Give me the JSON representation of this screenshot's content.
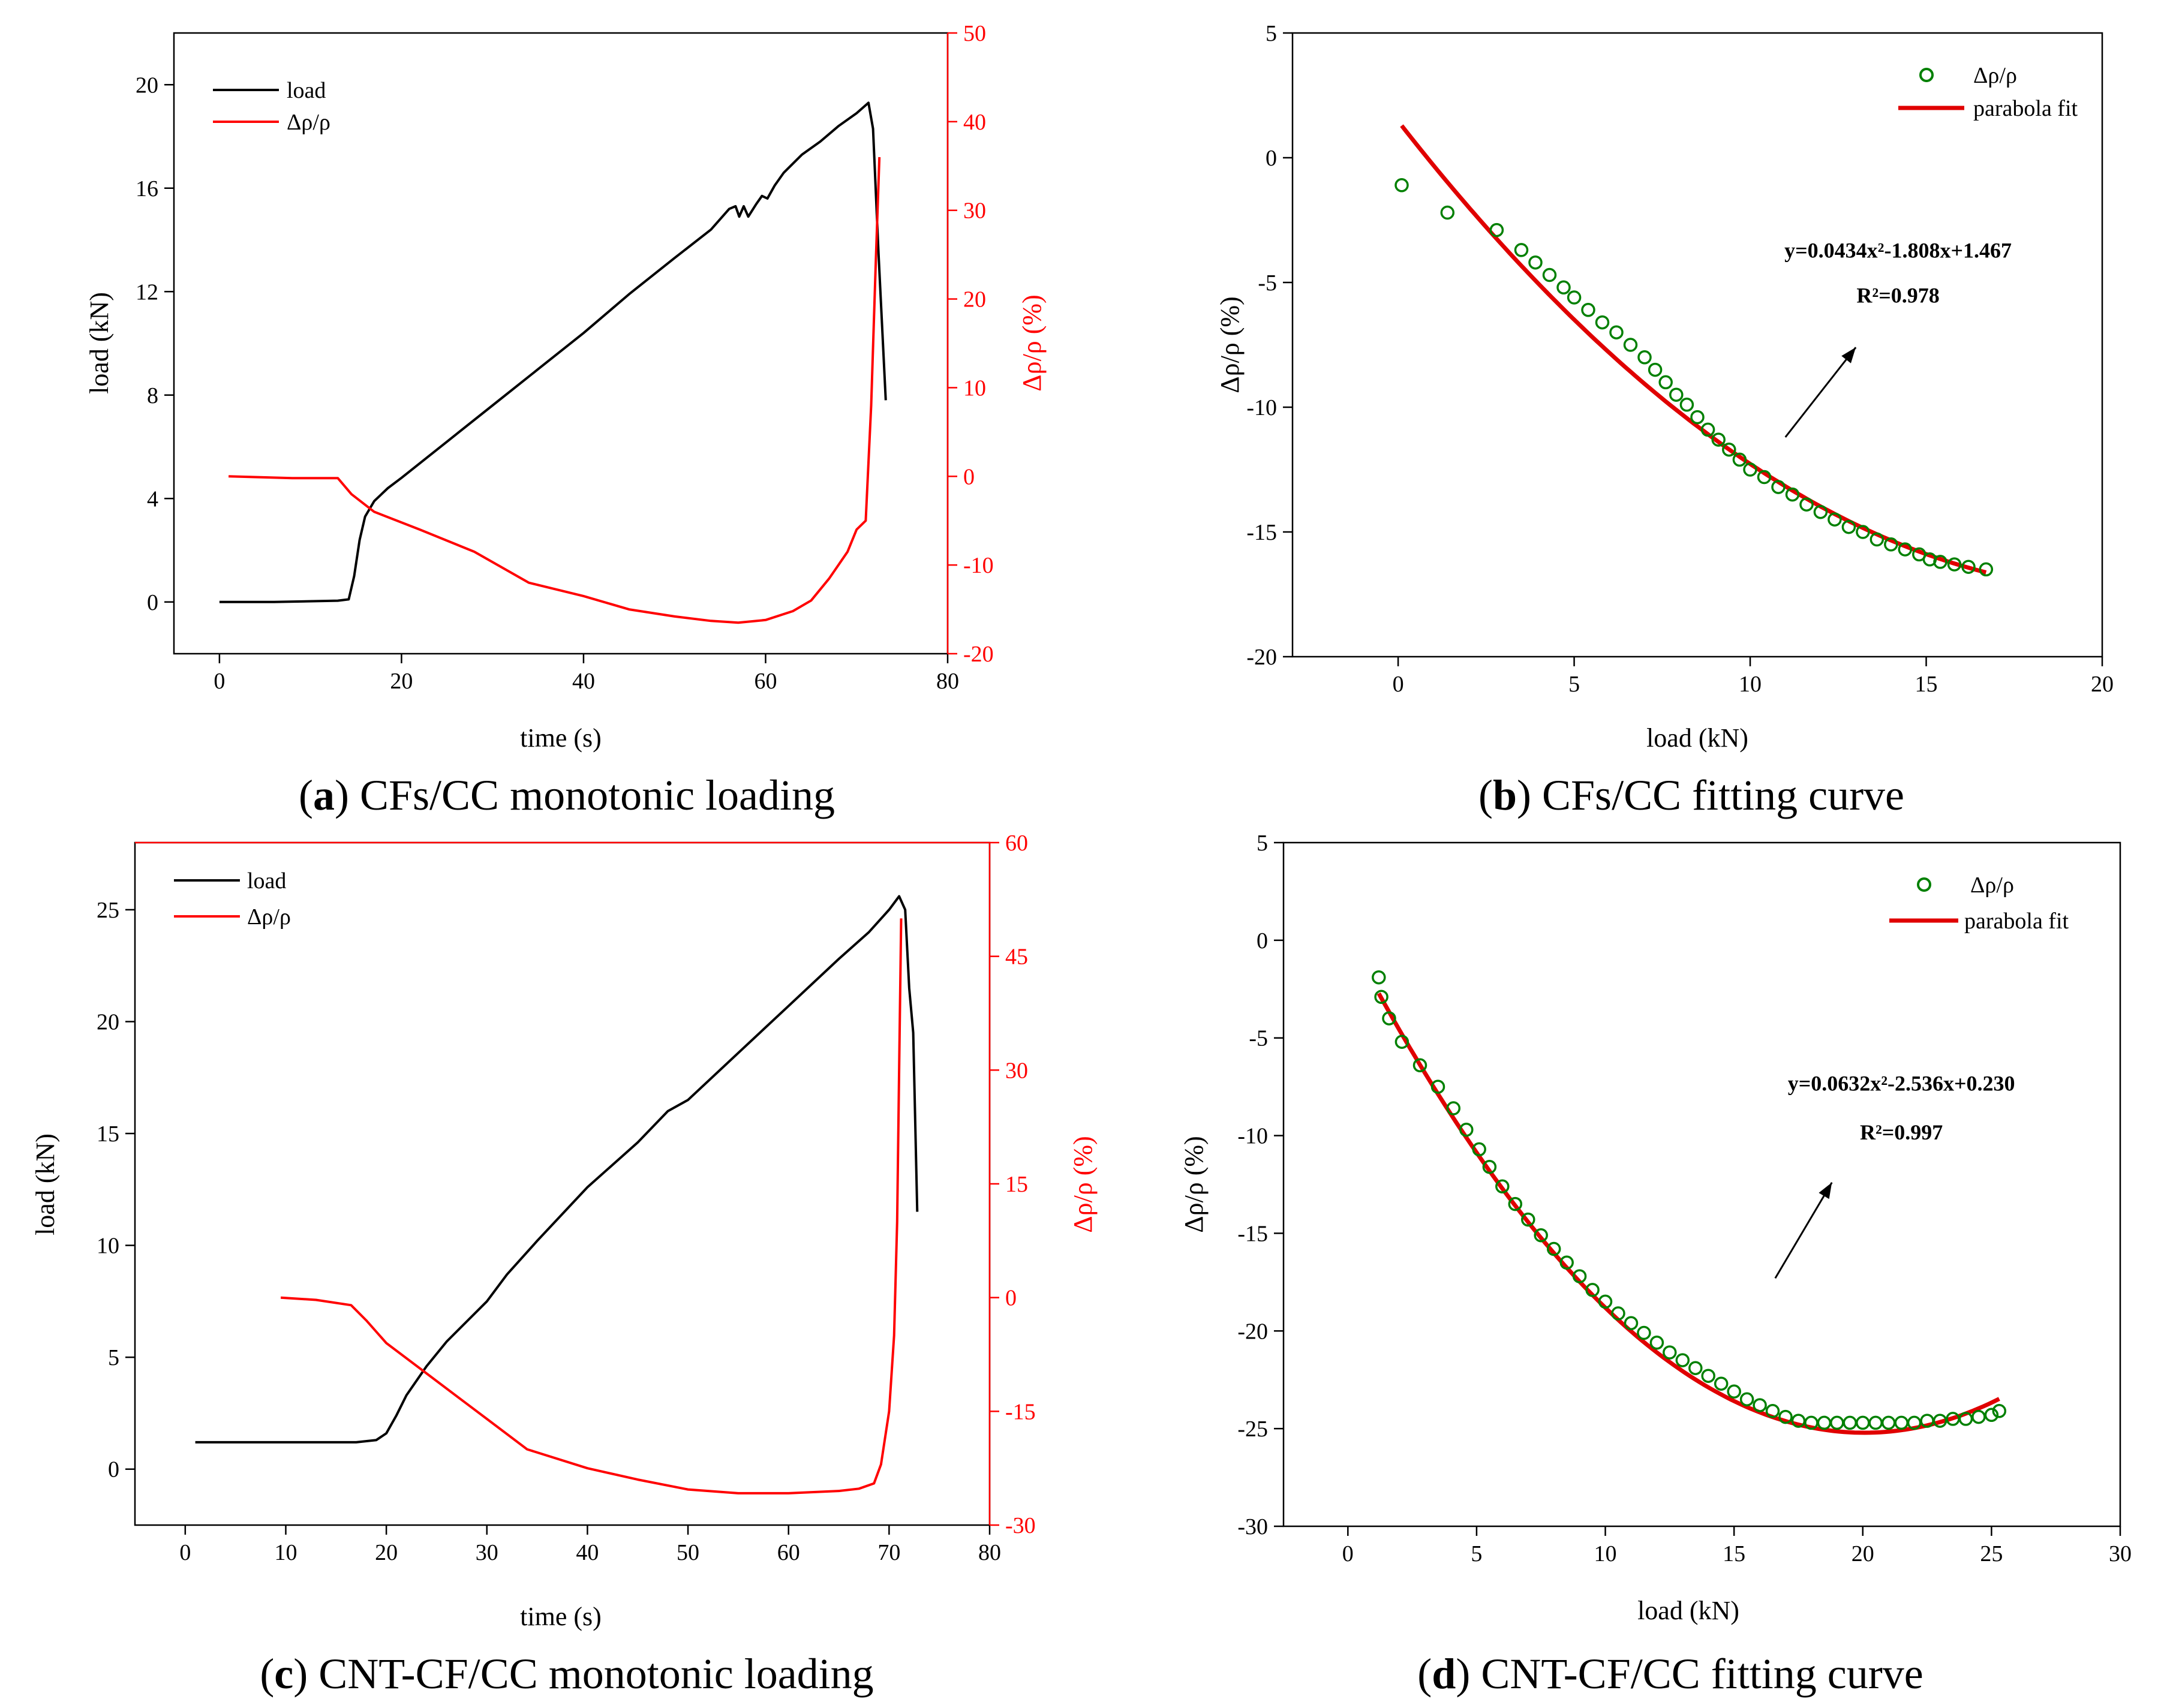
{
  "chart_data": [
    {
      "id": "a",
      "type": "line",
      "caption": {
        "letter": "a",
        "text": "CFs/CC monotonic loading"
      },
      "xlabel": "time (s)",
      "ylabel": "load (kN)",
      "y2label": "Δρ/ρ (%)",
      "xlim": [
        -5,
        80
      ],
      "ylim": [
        -2,
        22
      ],
      "y2lim": [
        -20,
        50
      ],
      "xticks": [
        "0",
        "20",
        "40",
        "60",
        "80"
      ],
      "yticks": [
        "0",
        "4",
        "8",
        "12",
        "16",
        "20"
      ],
      "y2ticks": [
        "-20",
        "-10",
        "0",
        "10",
        "20",
        "30",
        "40",
        "50"
      ],
      "legend": [
        {
          "label": "load",
          "color": "#000000"
        },
        {
          "label": "Δρ/ρ",
          "color": "#ff0000"
        }
      ],
      "series": [
        {
          "name": "load",
          "axis": "left",
          "color": "#000000",
          "points": [
            [
              0,
              0
            ],
            [
              6,
              0
            ],
            [
              13,
              0.05
            ],
            [
              14.2,
              0.1
            ],
            [
              14.8,
              1.0
            ],
            [
              15.4,
              2.4
            ],
            [
              16,
              3.3
            ],
            [
              17,
              3.9
            ],
            [
              18.5,
              4.4
            ],
            [
              20,
              4.8
            ],
            [
              25,
              6.2
            ],
            [
              30,
              7.6
            ],
            [
              35,
              9.0
            ],
            [
              40,
              10.4
            ],
            [
              45,
              11.9
            ],
            [
              50,
              13.3
            ],
            [
              54,
              14.4
            ],
            [
              56,
              15.2
            ],
            [
              56.7,
              15.3
            ],
            [
              57.1,
              14.9
            ],
            [
              57.6,
              15.3
            ],
            [
              58.1,
              14.9
            ],
            [
              59,
              15.4
            ],
            [
              59.6,
              15.7
            ],
            [
              60.2,
              15.6
            ],
            [
              61,
              16.1
            ],
            [
              62,
              16.6
            ],
            [
              64,
              17.3
            ],
            [
              66,
              17.8
            ],
            [
              68,
              18.4
            ],
            [
              70,
              18.9
            ],
            [
              71.3,
              19.3
            ],
            [
              71.8,
              18.3
            ],
            [
              72.4,
              13.5
            ],
            [
              73.2,
              7.8
            ]
          ]
        },
        {
          "name": "Δρ/ρ",
          "axis": "right",
          "color": "#ff0000",
          "points": [
            [
              1,
              0
            ],
            [
              8,
              -0.2
            ],
            [
              13,
              -0.2
            ],
            [
              14.5,
              -2
            ],
            [
              17,
              -4
            ],
            [
              22,
              -6
            ],
            [
              28,
              -8.5
            ],
            [
              34,
              -12
            ],
            [
              40,
              -13.5
            ],
            [
              45,
              -15
            ],
            [
              50,
              -15.8
            ],
            [
              54,
              -16.3
            ],
            [
              57,
              -16.5
            ],
            [
              60,
              -16.2
            ],
            [
              63,
              -15.2
            ],
            [
              65,
              -14
            ],
            [
              67,
              -11.5
            ],
            [
              69,
              -8.5
            ],
            [
              70,
              -6
            ],
            [
              71,
              -5
            ],
            [
              71.6,
              8
            ],
            [
              72.1,
              24
            ],
            [
              72.5,
              36
            ]
          ]
        }
      ]
    },
    {
      "id": "b",
      "type": "scatter",
      "caption": {
        "letter": "b",
        "text": "CFs/CC fitting curve"
      },
      "xlabel": "load (kN)",
      "ylabel": "Δρ/ρ (%)",
      "xlim": [
        -3,
        20
      ],
      "ylim": [
        -20,
        5
      ],
      "xticks": [
        "0",
        "5",
        "10",
        "15",
        "20"
      ],
      "yticks": [
        "-20",
        "-15",
        "-10",
        "-5",
        "0",
        "5"
      ],
      "legend": [
        {
          "label": "Δρ/ρ",
          "marker": "circle",
          "color": "#008000"
        },
        {
          "label": "parabola fit",
          "marker": "line",
          "color": "#e00000"
        }
      ],
      "equation": "y=0.0434x²-1.808x+1.467",
      "r2": "R²=0.978",
      "fit": {
        "a": 0.0434,
        "b": -1.808,
        "c": 1.467,
        "x_range": [
          0.1,
          16.7
        ],
        "color": "#e00000"
      },
      "arrow": {
        "from": [
          11,
          -11.2
        ],
        "to": [
          13,
          -7.6
        ]
      },
      "equation_anchor": [
        14.2,
        -4
      ],
      "r2_anchor": [
        14.2,
        -5.8
      ],
      "points": [
        [
          0.1,
          -1.1
        ],
        [
          1.4,
          -2.2
        ],
        [
          2.8,
          -2.9
        ],
        [
          3.5,
          -3.7
        ],
        [
          3.9,
          -4.2
        ],
        [
          4.3,
          -4.7
        ],
        [
          4.7,
          -5.2
        ],
        [
          5.0,
          -5.6
        ],
        [
          5.4,
          -6.1
        ],
        [
          5.8,
          -6.6
        ],
        [
          6.2,
          -7.0
        ],
        [
          6.6,
          -7.5
        ],
        [
          7.0,
          -8.0
        ],
        [
          7.3,
          -8.5
        ],
        [
          7.6,
          -9.0
        ],
        [
          7.9,
          -9.5
        ],
        [
          8.2,
          -9.9
        ],
        [
          8.5,
          -10.4
        ],
        [
          8.8,
          -10.9
        ],
        [
          9.1,
          -11.3
        ],
        [
          9.4,
          -11.7
        ],
        [
          9.7,
          -12.1
        ],
        [
          10.0,
          -12.5
        ],
        [
          10.4,
          -12.8
        ],
        [
          10.8,
          -13.2
        ],
        [
          11.2,
          -13.5
        ],
        [
          11.6,
          -13.9
        ],
        [
          12.0,
          -14.2
        ],
        [
          12.4,
          -14.5
        ],
        [
          12.8,
          -14.8
        ],
        [
          13.2,
          -15.0
        ],
        [
          13.6,
          -15.3
        ],
        [
          14.0,
          -15.5
        ],
        [
          14.4,
          -15.7
        ],
        [
          14.8,
          -15.9
        ],
        [
          15.1,
          -16.1
        ],
        [
          15.4,
          -16.2
        ],
        [
          15.8,
          -16.3
        ],
        [
          16.2,
          -16.4
        ],
        [
          16.7,
          -16.5
        ]
      ]
    },
    {
      "id": "c",
      "type": "line",
      "caption": {
        "letter": "c",
        "text": "CNT-CF/CC monotonic loading"
      },
      "xlabel": "time (s)",
      "ylabel": "load (kN)",
      "y2label": "Δρ/ρ (%)",
      "xlim": [
        -5,
        80
      ],
      "ylim": [
        -2.5,
        28
      ],
      "y2lim": [
        -30,
        60
      ],
      "xticks": [
        "0",
        "10",
        "20",
        "30",
        "40",
        "50",
        "60",
        "70",
        "80"
      ],
      "yticks": [
        "0",
        "5",
        "10",
        "15",
        "20",
        "25"
      ],
      "y2ticks": [
        "-30",
        "-15",
        "0",
        "15",
        "30",
        "45",
        "60"
      ],
      "legend": [
        {
          "label": "load",
          "color": "#000000"
        },
        {
          "label": "Δρ/ρ",
          "color": "#ff0000"
        }
      ],
      "series": [
        {
          "name": "load",
          "axis": "left",
          "color": "#000000",
          "points": [
            [
              1,
              1.2
            ],
            [
              10,
              1.2
            ],
            [
              17,
              1.2
            ],
            [
              19,
              1.3
            ],
            [
              20,
              1.6
            ],
            [
              21,
              2.4
            ],
            [
              22,
              3.3
            ],
            [
              24,
              4.6
            ],
            [
              26,
              5.7
            ],
            [
              28,
              6.6
            ],
            [
              30,
              7.5
            ],
            [
              32,
              8.7
            ],
            [
              35,
              10.2
            ],
            [
              40,
              12.6
            ],
            [
              45,
              14.6
            ],
            [
              48,
              16.0
            ],
            [
              50,
              16.5
            ],
            [
              55,
              18.6
            ],
            [
              60,
              20.7
            ],
            [
              65,
              22.8
            ],
            [
              68,
              24.0
            ],
            [
              70,
              25.0
            ],
            [
              71,
              25.6
            ],
            [
              71.6,
              25.0
            ],
            [
              72,
              21.5
            ],
            [
              72.4,
              19.5
            ],
            [
              72.8,
              11.5
            ]
          ]
        },
        {
          "name": "Δρ/ρ",
          "axis": "right",
          "color": "#ff0000",
          "points": [
            [
              9.5,
              0
            ],
            [
              13,
              -0.3
            ],
            [
              16.5,
              -1
            ],
            [
              18,
              -3
            ],
            [
              20,
              -6
            ],
            [
              24,
              -10
            ],
            [
              28,
              -14
            ],
            [
              30,
              -16
            ],
            [
              34,
              -20
            ],
            [
              40,
              -22.5
            ],
            [
              45,
              -24
            ],
            [
              50,
              -25.3
            ],
            [
              55,
              -25.8
            ],
            [
              60,
              -25.8
            ],
            [
              65,
              -25.5
            ],
            [
              67,
              -25.2
            ],
            [
              68.5,
              -24.5
            ],
            [
              69.2,
              -22
            ],
            [
              70,
              -15
            ],
            [
              70.5,
              -5
            ],
            [
              70.8,
              10
            ],
            [
              71,
              30
            ],
            [
              71.2,
              50
            ]
          ]
        }
      ]
    },
    {
      "id": "d",
      "type": "scatter",
      "caption": {
        "letter": "d",
        "text": "CNT-CF/CC fitting curve"
      },
      "xlabel": "load (kN)",
      "ylabel": "Δρ/ρ (%)",
      "xlim": [
        -2.5,
        30
      ],
      "ylim": [
        -30,
        5
      ],
      "xticks": [
        "0",
        "5",
        "10",
        "15",
        "20",
        "25",
        "30"
      ],
      "yticks": [
        "-30",
        "-25",
        "-20",
        "-15",
        "-10",
        "-5",
        "0",
        "5"
      ],
      "legend": [
        {
          "label": "Δρ/ρ",
          "marker": "circle",
          "color": "#008000"
        },
        {
          "label": "parabola fit",
          "marker": "line",
          "color": "#e00000"
        }
      ],
      "equation": "y=0.0632x²-2.536x+0.230",
      "r2": "R²=0.997",
      "fit": {
        "a": 0.0632,
        "b": -2.536,
        "c": 0.23,
        "x_range": [
          1.2,
          25.3
        ],
        "color": "#e00000"
      },
      "arrow": {
        "from": [
          16.6,
          -17.3
        ],
        "to": [
          18.8,
          -12.4
        ]
      },
      "equation_anchor": [
        21.5,
        -7.7
      ],
      "r2_anchor": [
        21.5,
        -10.2
      ],
      "points": [
        [
          1.2,
          -1.9
        ],
        [
          1.3,
          -2.9
        ],
        [
          1.6,
          -4.0
        ],
        [
          2.1,
          -5.2
        ],
        [
          2.8,
          -6.4
        ],
        [
          3.5,
          -7.5
        ],
        [
          4.1,
          -8.6
        ],
        [
          4.6,
          -9.7
        ],
        [
          5.1,
          -10.7
        ],
        [
          5.5,
          -11.6
        ],
        [
          6.0,
          -12.6
        ],
        [
          6.5,
          -13.5
        ],
        [
          7.0,
          -14.3
        ],
        [
          7.5,
          -15.1
        ],
        [
          8.0,
          -15.8
        ],
        [
          8.5,
          -16.5
        ],
        [
          9.0,
          -17.2
        ],
        [
          9.5,
          -17.9
        ],
        [
          10.0,
          -18.5
        ],
        [
          10.5,
          -19.1
        ],
        [
          11.0,
          -19.6
        ],
        [
          11.5,
          -20.1
        ],
        [
          12.0,
          -20.6
        ],
        [
          12.5,
          -21.1
        ],
        [
          13.0,
          -21.5
        ],
        [
          13.5,
          -21.9
        ],
        [
          14.0,
          -22.3
        ],
        [
          14.5,
          -22.7
        ],
        [
          15.0,
          -23.1
        ],
        [
          15.5,
          -23.5
        ],
        [
          16.0,
          -23.8
        ],
        [
          16.5,
          -24.1
        ],
        [
          17.0,
          -24.4
        ],
        [
          17.5,
          -24.6
        ],
        [
          18.0,
          -24.7
        ],
        [
          18.5,
          -24.7
        ],
        [
          19.0,
          -24.7
        ],
        [
          19.5,
          -24.7
        ],
        [
          20.0,
          -24.7
        ],
        [
          20.5,
          -24.7
        ],
        [
          21.0,
          -24.7
        ],
        [
          21.5,
          -24.7
        ],
        [
          22.0,
          -24.7
        ],
        [
          22.5,
          -24.6
        ],
        [
          23.0,
          -24.6
        ],
        [
          23.5,
          -24.5
        ],
        [
          24.0,
          -24.5
        ],
        [
          24.5,
          -24.4
        ],
        [
          25.0,
          -24.3
        ],
        [
          25.3,
          -24.1
        ]
      ]
    }
  ]
}
